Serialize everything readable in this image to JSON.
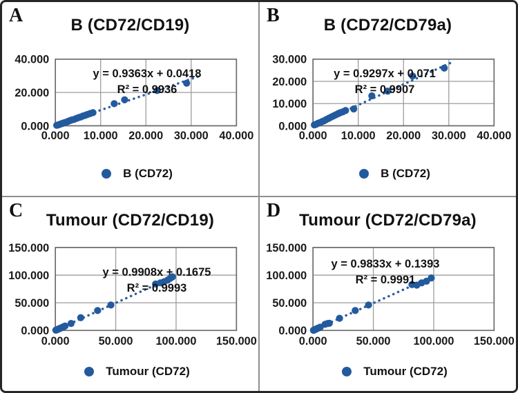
{
  "colors": {
    "marker": "#235a9e",
    "trendline": "#2e5f9e",
    "grid": "#9b9b9b",
    "plot_border": "#6a6a6a",
    "text": "#1a1a1a",
    "panel_divider": "#8e8e8e",
    "outer_border": "#262626",
    "background": "#ffffff"
  },
  "chart_data": [
    {
      "type": "scatter",
      "panel_label": "A",
      "title": "B (CD72/CD19)",
      "equation": "y = 0.9363x + 0.0418",
      "r_squared_label": "R² = 0.9936",
      "r_squared": "0.9936",
      "legend_label": "B (CD72)",
      "legend_position": "bottom",
      "grid": true,
      "xlim": [
        0,
        40
      ],
      "ylim": [
        0,
        40
      ],
      "xticks": {
        "values": [
          0,
          10,
          20,
          30,
          40
        ],
        "labels": [
          "0.000",
          "10.000",
          "20.000",
          "30.000",
          "40.000"
        ]
      },
      "yticks": {
        "values": [
          0,
          20,
          40
        ],
        "labels": [
          "0.000",
          "20.000",
          "40.000"
        ]
      },
      "trend": {
        "slope": 0.9363,
        "intercept": 0.0418,
        "x_range": [
          0,
          31.5
        ],
        "style": "dotted"
      },
      "marker_color": "#235a9e",
      "points": [
        [
          0.3,
          0.3
        ],
        [
          0.7,
          0.6
        ],
        [
          1.1,
          1.0
        ],
        [
          1.5,
          1.4
        ],
        [
          1.9,
          1.8
        ],
        [
          2.3,
          2.1
        ],
        [
          2.7,
          2.5
        ],
        [
          3.1,
          3.0
        ],
        [
          3.6,
          3.5
        ],
        [
          4.1,
          3.8
        ],
        [
          4.6,
          4.4
        ],
        [
          5.1,
          4.9
        ],
        [
          5.6,
          5.3
        ],
        [
          6.1,
          5.9
        ],
        [
          6.6,
          6.3
        ],
        [
          7.1,
          6.8
        ],
        [
          7.7,
          7.4
        ],
        [
          8.3,
          7.9
        ],
        [
          13,
          13.3
        ],
        [
          15.3,
          15.6
        ],
        [
          22.5,
          21.2
        ],
        [
          29,
          25.6
        ]
      ]
    },
    {
      "type": "scatter",
      "panel_label": "B",
      "title": "B (CD72/CD79a)",
      "equation": "y = 0.9297x + 0.071",
      "r_squared_label": "R² = 0.9907",
      "r_squared": "0.9907",
      "legend_label": "B (CD72)",
      "legend_position": "bottom",
      "grid": true,
      "xlim": [
        0,
        40
      ],
      "ylim": [
        0,
        30
      ],
      "xticks": {
        "values": [
          0,
          10,
          20,
          30,
          40
        ],
        "labels": [
          "0.000",
          "10.000",
          "20.000",
          "30.000",
          "40.000"
        ]
      },
      "yticks": {
        "values": [
          0,
          10,
          20,
          30
        ],
        "labels": [
          "0.000",
          "10.000",
          "20.000",
          "30.000"
        ]
      },
      "trend": {
        "slope": 0.9297,
        "intercept": 0.071,
        "x_range": [
          0,
          30.5
        ],
        "style": "dotted"
      },
      "marker_color": "#235a9e",
      "points": [
        [
          0.3,
          0.4
        ],
        [
          0.7,
          0.7
        ],
        [
          1.1,
          1.1
        ],
        [
          1.5,
          1.4
        ],
        [
          2,
          1.9
        ],
        [
          2.5,
          2.3
        ],
        [
          3,
          2.9
        ],
        [
          3.5,
          3.4
        ],
        [
          4,
          3.9
        ],
        [
          4.5,
          4.4
        ],
        [
          5,
          4.9
        ],
        [
          5.5,
          5.4
        ],
        [
          6,
          5.9
        ],
        [
          6.6,
          6.3
        ],
        [
          7.2,
          6.9
        ],
        [
          9,
          7.6
        ],
        [
          13,
          13.5
        ],
        [
          16.5,
          15.6
        ],
        [
          22,
          22.4
        ],
        [
          29,
          26
        ]
      ]
    },
    {
      "type": "scatter",
      "panel_label": "C",
      "title": "Tumour (CD72/CD19)",
      "equation": "y = 0.9908x + 0.1675",
      "r_squared_label": "R² = 0.9993",
      "r_squared": "0.9993",
      "legend_label": "Tumour (CD72)",
      "legend_position": "bottom",
      "grid": true,
      "xlim": [
        0,
        150
      ],
      "ylim": [
        0,
        150
      ],
      "xticks": {
        "values": [
          0,
          50,
          100,
          150
        ],
        "labels": [
          "0.000",
          "50.000",
          "100.000",
          "150.000"
        ]
      },
      "yticks": {
        "values": [
          0,
          50,
          100,
          150
        ],
        "labels": [
          "0.000",
          "50.000",
          "100.000",
          "150.000"
        ]
      },
      "trend": {
        "slope": 0.9908,
        "intercept": 0.1675,
        "x_range": [
          0,
          101
        ],
        "style": "dotted"
      },
      "marker_color": "#235a9e",
      "points": [
        [
          0.4,
          0.4
        ],
        [
          0.9,
          0.9
        ],
        [
          1.4,
          1.4
        ],
        [
          2,
          2
        ],
        [
          2.6,
          2.5
        ],
        [
          3.2,
          3.1
        ],
        [
          4,
          3.9
        ],
        [
          5,
          4.8
        ],
        [
          6,
          5.9
        ],
        [
          7,
          6.9
        ],
        [
          8,
          7.9
        ],
        [
          13,
          12.6
        ],
        [
          21,
          23
        ],
        [
          35,
          36
        ],
        [
          46,
          46
        ],
        [
          83,
          84
        ],
        [
          87,
          86
        ],
        [
          90,
          88
        ],
        [
          93,
          91
        ],
        [
          95,
          94
        ],
        [
          97,
          97
        ]
      ]
    },
    {
      "type": "scatter",
      "panel_label": "D",
      "title": "Tumour (CD72/CD79a)",
      "equation": "y = 0.9833x + 0.1393",
      "r_squared_label": "R² = 0.9991",
      "r_squared": "0.9991",
      "legend_label": "Tumour (CD72)",
      "legend_position": "bottom",
      "grid": true,
      "xlim": [
        0,
        150
      ],
      "ylim": [
        0,
        150
      ],
      "xticks": {
        "values": [
          0,
          50,
          100,
          150
        ],
        "labels": [
          "0.000",
          "50.000",
          "100.000",
          "150.000"
        ]
      },
      "yticks": {
        "values": [
          0,
          50,
          100,
          150
        ],
        "labels": [
          "0.000",
          "50.000",
          "100.000",
          "150.000"
        ]
      },
      "trend": {
        "slope": 0.9833,
        "intercept": 0.1393,
        "x_range": [
          0,
          99
        ],
        "style": "dotted"
      },
      "marker_color": "#235a9e",
      "points": [
        [
          0.4,
          0.3
        ],
        [
          0.9,
          0.8
        ],
        [
          1.4,
          1.3
        ],
        [
          2,
          1.9
        ],
        [
          2.6,
          2.5
        ],
        [
          3.3,
          3.2
        ],
        [
          4,
          3.9
        ],
        [
          5,
          4.9
        ],
        [
          6,
          5.9
        ],
        [
          10,
          11
        ],
        [
          12,
          12.5
        ],
        [
          13.5,
          13
        ],
        [
          22,
          22
        ],
        [
          35,
          36
        ],
        [
          46,
          46
        ],
        [
          82,
          83
        ],
        [
          86,
          82
        ],
        [
          90,
          86
        ],
        [
          94,
          89
        ],
        [
          98,
          95
        ]
      ]
    }
  ]
}
